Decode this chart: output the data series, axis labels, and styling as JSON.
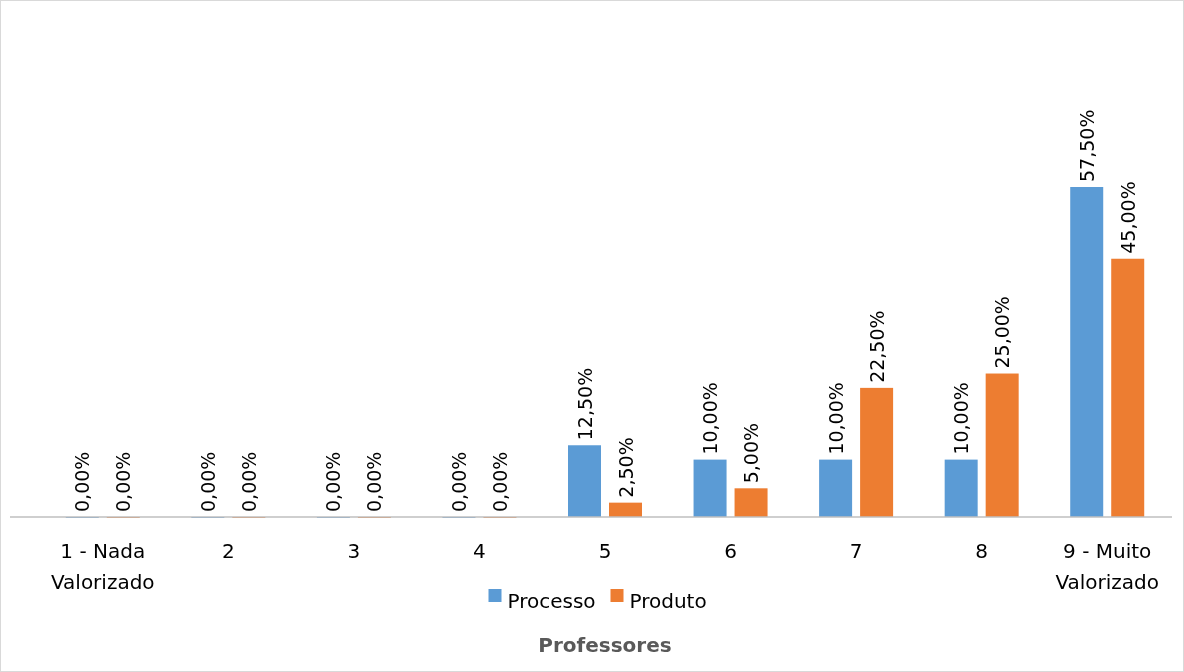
{
  "chart_data": {
    "type": "bar",
    "xlabel": "Professores",
    "categories": [
      "1 - Nada Valorizado",
      "2",
      "3",
      "4",
      "5",
      "6",
      "7",
      "8",
      "9 - Muito Valorizado"
    ],
    "legend": "bottom",
    "series": [
      {
        "name": "Processo",
        "color": "#5b9bd5",
        "values": [
          0,
          0,
          0,
          0,
          12.5,
          10,
          10,
          10,
          57.5
        ],
        "value_labels": [
          "0,00%",
          "0,00%",
          "0,00%",
          "0,00%",
          "12,50%",
          "10,00%",
          "10,00%",
          "10,00%",
          "57,50%"
        ]
      },
      {
        "name": "Produto",
        "color": "#ed7d31",
        "values": [
          0,
          0,
          0,
          0,
          2.5,
          5,
          22.5,
          25,
          45
        ],
        "value_labels": [
          "0,00%",
          "0,00%",
          "0,00%",
          "0,00%",
          "2,50%",
          "5,00%",
          "22,50%",
          "25,00%",
          "45,00%"
        ]
      }
    ]
  }
}
